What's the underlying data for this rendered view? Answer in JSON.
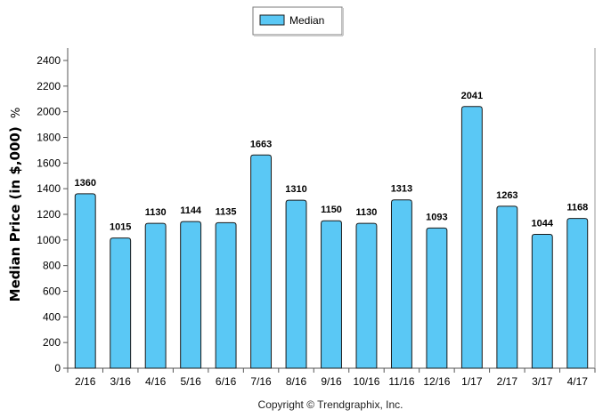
{
  "chart_data": {
    "type": "bar",
    "categories": [
      "2/16",
      "3/16",
      "4/16",
      "5/16",
      "6/16",
      "7/16",
      "8/16",
      "9/16",
      "10/16",
      "11/16",
      "12/16",
      "1/17",
      "2/17",
      "3/17",
      "4/17"
    ],
    "series": [
      {
        "name": "Median",
        "values": [
          1360,
          1015,
          1130,
          1144,
          1135,
          1663,
          1310,
          1150,
          1130,
          1313,
          1093,
          2041,
          1263,
          1044,
          1168
        ]
      }
    ],
    "ylabel_main": "Median Price (in $,000)",
    "ylabel_unit": "%",
    "xlabel": "",
    "ylim": [
      0,
      2400
    ],
    "yticks": [
      0,
      200,
      400,
      600,
      800,
      1000,
      1200,
      1400,
      1600,
      1800,
      2000,
      2200,
      2400
    ],
    "grid": false,
    "legend_position": "top-center",
    "bar_color": "#5ac8f5",
    "bar_stroke": "#1a1a1a"
  },
  "footer": {
    "copyright": "Copyright © Trendgraphix, Inc."
  }
}
